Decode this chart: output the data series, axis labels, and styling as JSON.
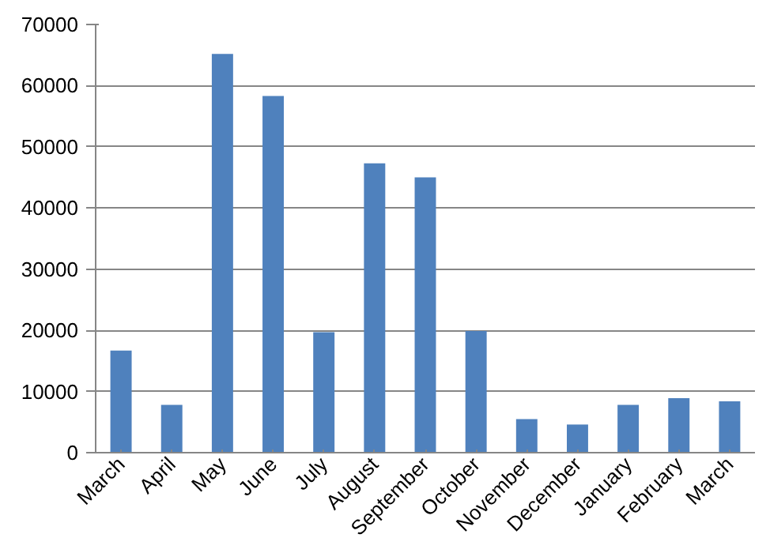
{
  "chart_data": {
    "type": "bar",
    "categories": [
      "March",
      "April",
      "May",
      "June",
      "July",
      "August",
      "September",
      "October",
      "November",
      "December",
      "January",
      "February",
      "March"
    ],
    "values": [
      16700,
      7800,
      65200,
      58300,
      19700,
      47300,
      45000,
      19900,
      5500,
      4600,
      7800,
      8900,
      8400
    ],
    "color": "#4f81bd",
    "ylim": [
      0,
      70000
    ],
    "yticks": [
      0,
      10000,
      20000,
      30000,
      40000,
      50000,
      60000,
      70000
    ],
    "grid": "y"
  }
}
